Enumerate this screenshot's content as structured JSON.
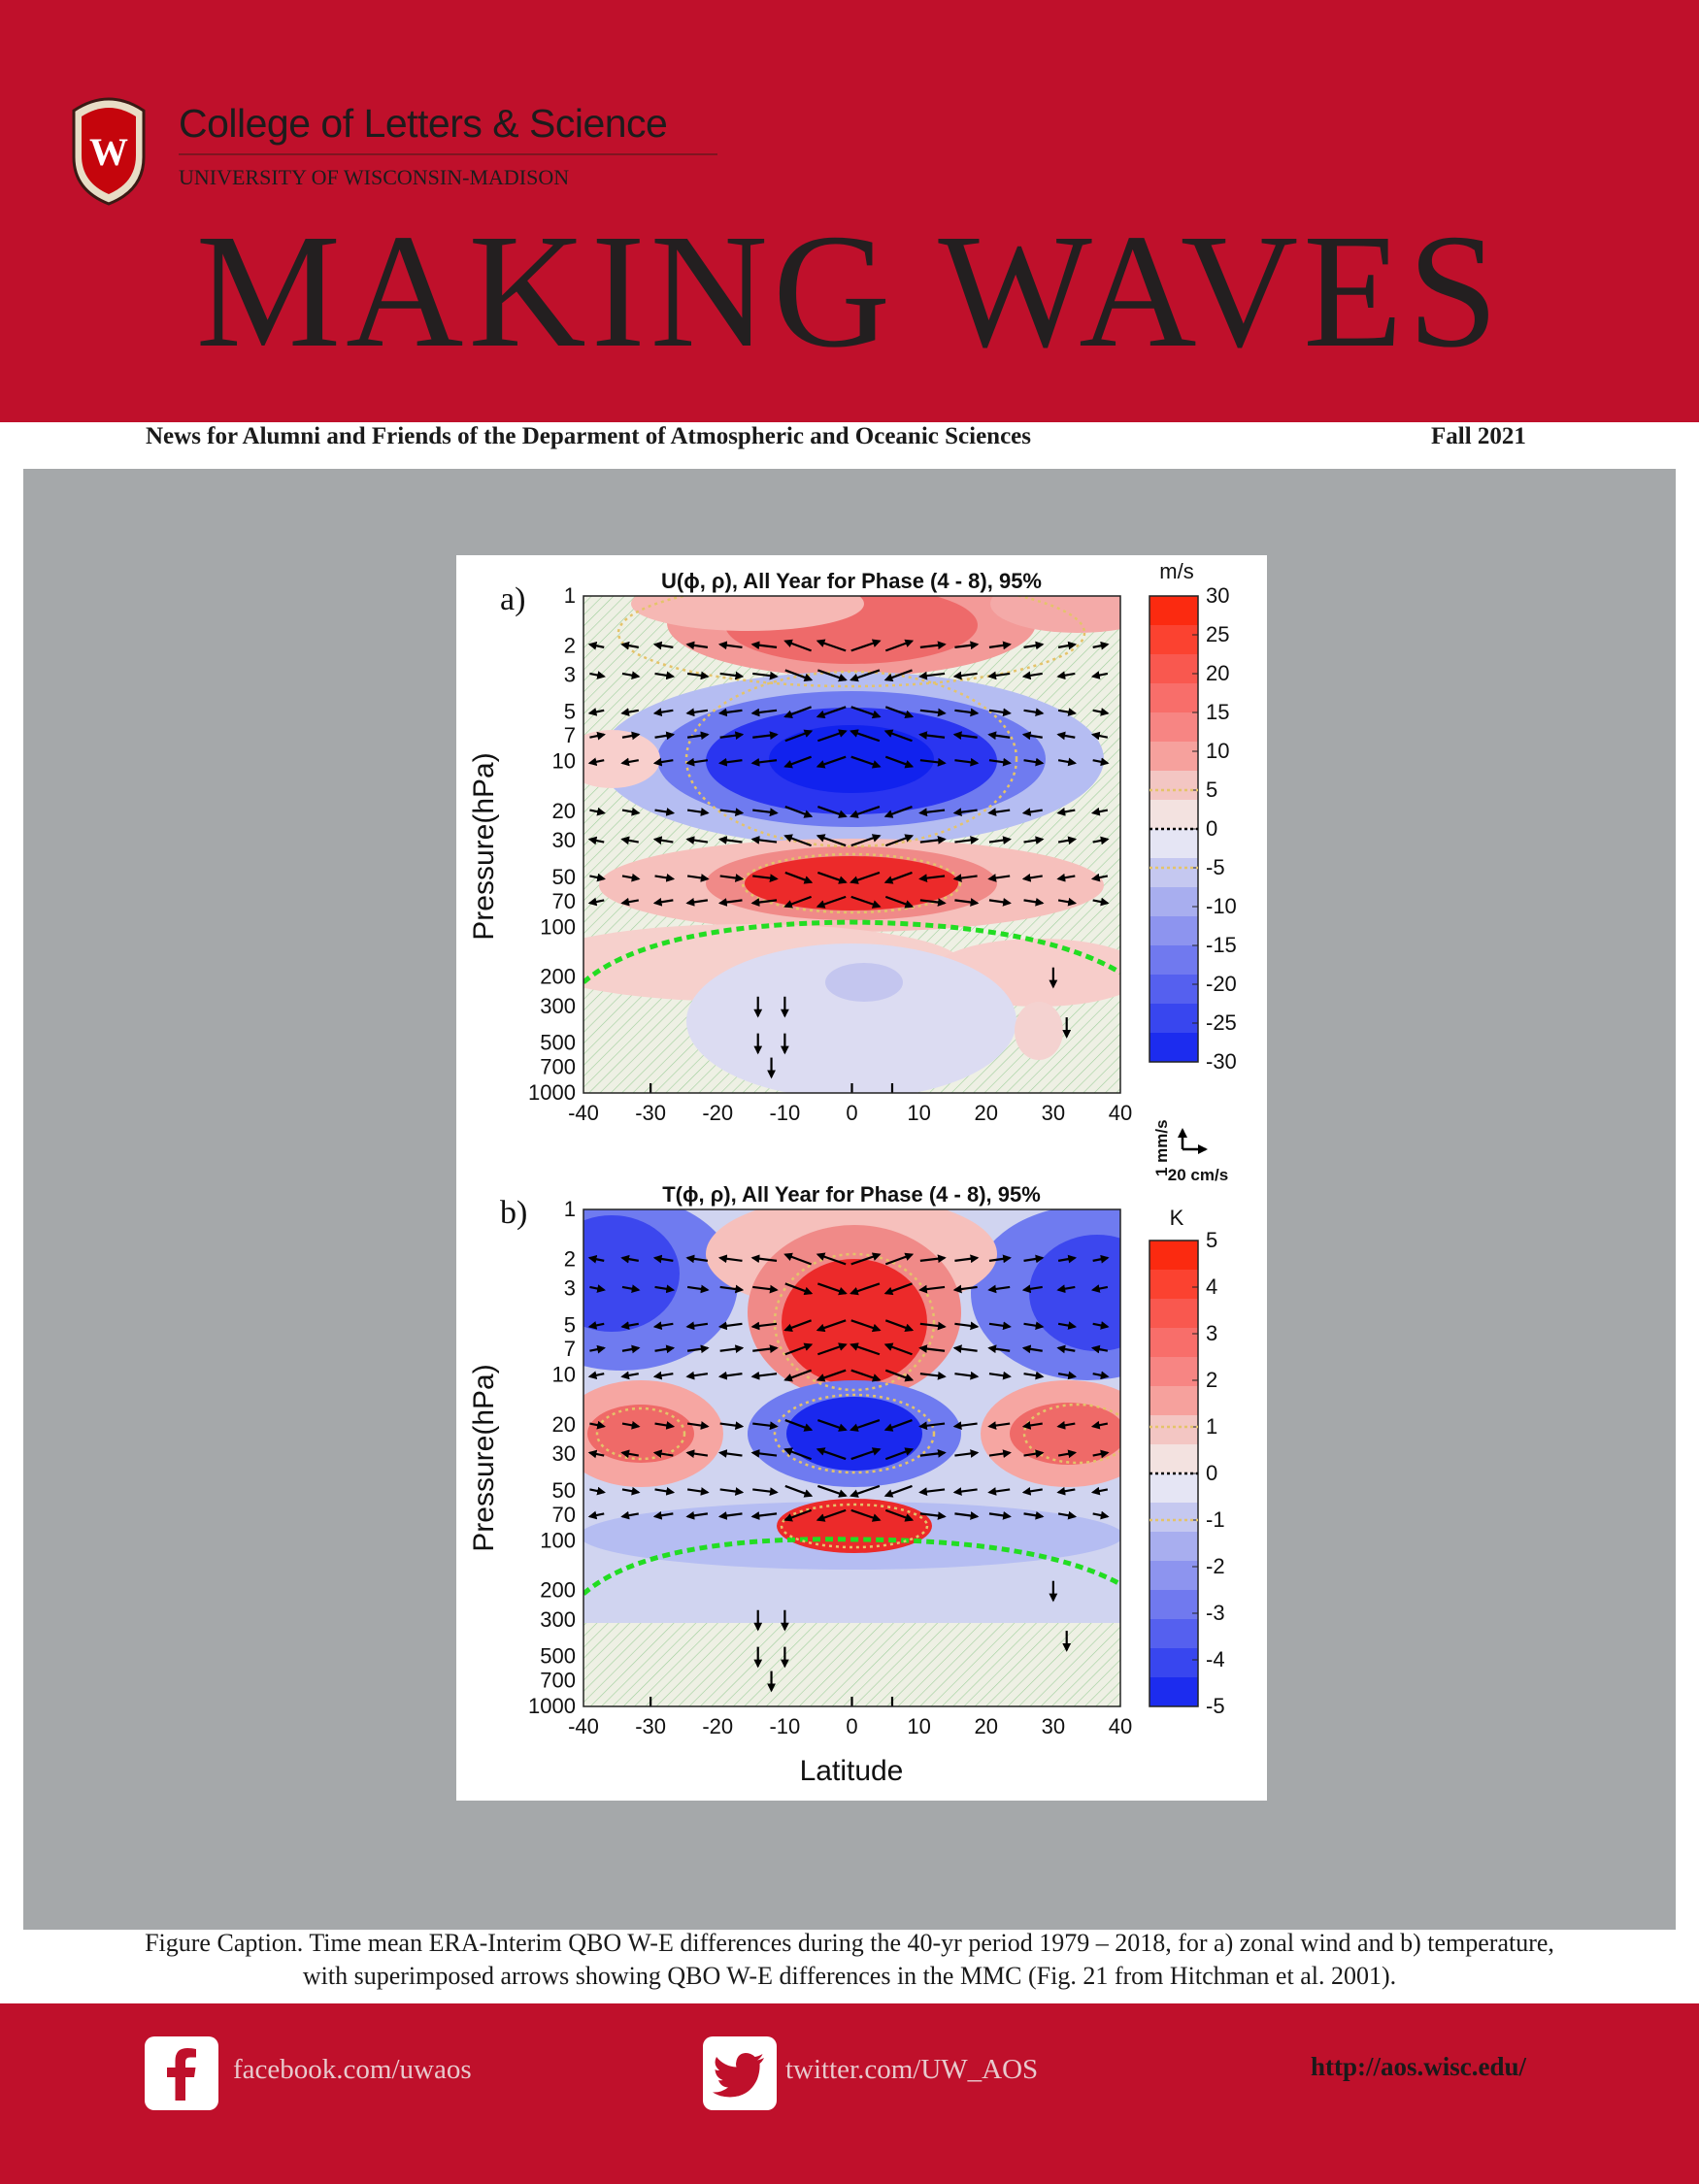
{
  "header": {
    "college": "College of Letters & Science",
    "university": "UNIVERSITY OF WISCONSIN-MADISON",
    "crest_letter": "W",
    "title": "MAKING WAVES",
    "tagline": "News for Alumni and Friends of the Deparment of Atmospheric and Oceanic Sciences",
    "issue": "Fall 2021"
  },
  "colors": {
    "brand_red": "#bf102b",
    "gray_panel": "#a5a8aa"
  },
  "figure": {
    "panels": [
      {
        "label": "a)",
        "title": "U(ϕ, ρ), All Year  for Phase (4 - 8), 95%"
      },
      {
        "label": "b)",
        "title": "T(ϕ, ρ), All Year  for Phase (4 - 8), 95%"
      }
    ],
    "ylabel": "Pressure(hPa)",
    "xlabel": "Latitude",
    "arrow_scale": {
      "vertical": "1 mm/s",
      "horizontal": "20 cm/s"
    }
  },
  "chart_data": [
    {
      "type": "heatmap",
      "label": "a)",
      "title": "U(ϕ, ρ), All Year  for Phase (4 - 8), 95%",
      "xlabel": "",
      "ylabel": "Pressure(hPa)",
      "x_ticks": [
        "-40",
        "-30",
        "-20",
        "-10",
        "0",
        "10",
        "20",
        "30",
        "40"
      ],
      "y_ticks": [
        "1",
        "2",
        "3",
        "5",
        "7",
        "10",
        "20",
        "30",
        "50",
        "70",
        "100",
        "200",
        "300",
        "500",
        "700",
        "1000"
      ],
      "xlim": [
        -40,
        40
      ],
      "ylim": [
        1000,
        1
      ],
      "y_scale": "log",
      "colorbar": {
        "unit": "m/s",
        "ticks": [
          "30",
          "25",
          "20",
          "15",
          "10",
          "5",
          "0",
          "-5",
          "-10",
          "-15",
          "-20",
          "-25",
          "-30"
        ],
        "range": [
          -30,
          30
        ]
      },
      "features": [
        {
          "pressure": 2,
          "value": 15
        },
        {
          "pressure": 10,
          "value": -25
        },
        {
          "pressure": 50,
          "value": 20
        },
        {
          "pressure": 300,
          "value": -5
        }
      ]
    },
    {
      "type": "heatmap",
      "label": "b)",
      "title": "T(ϕ, ρ), All Year  for Phase (4 - 8), 95%",
      "xlabel": "Latitude",
      "ylabel": "Pressure(hPa)",
      "x_ticks": [
        "-40",
        "-30",
        "-20",
        "-10",
        "0",
        "10",
        "20",
        "30",
        "40"
      ],
      "y_ticks": [
        "1",
        "2",
        "3",
        "5",
        "7",
        "10",
        "20",
        "30",
        "50",
        "70",
        "100",
        "200",
        "300",
        "500",
        "700",
        "1000"
      ],
      "xlim": [
        -40,
        40
      ],
      "ylim": [
        1000,
        1
      ],
      "y_scale": "log",
      "colorbar": {
        "unit": "K",
        "ticks": [
          "5",
          "4",
          "3",
          "2",
          "1",
          "0",
          "-1",
          "-2",
          "-3",
          "-4",
          "-5"
        ],
        "range": [
          -5,
          5
        ]
      },
      "features": [
        {
          "pressure": 5,
          "value": 4
        },
        {
          "pressure": 30,
          "value": -4
        },
        {
          "pressure": 80,
          "value": 3
        },
        {
          "pressure": 30,
          "value": 2
        }
      ]
    }
  ],
  "caption": {
    "line1": "Figure Caption.  Time mean ERA-Interim QBO W-E differences during the 40-yr period 1979 – 2018, for a) zonal wind and b) temperature,",
    "line2": "with superimposed arrows showing QBO W-E differences in the MMC (Fig. 21 from Hitchman et al. 2001)."
  },
  "footer": {
    "facebook": "facebook.com/uwaos",
    "twitter": "twitter.com/UW_AOS",
    "website": "http://aos.wisc.edu/",
    "facebook_icon": "facebook-icon",
    "twitter_icon": "twitter-icon"
  }
}
